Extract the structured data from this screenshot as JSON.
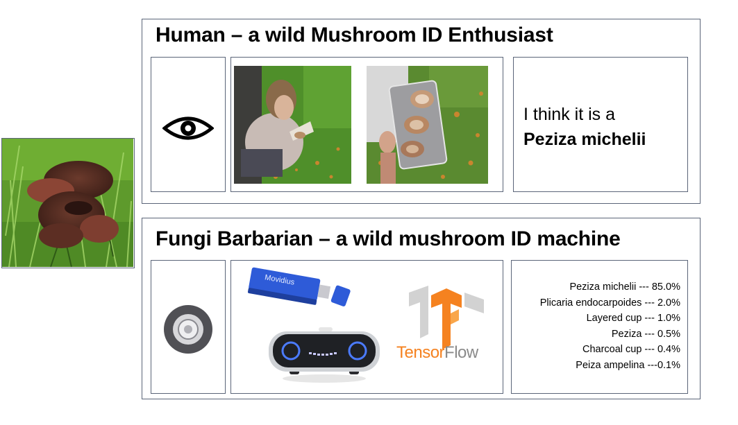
{
  "human": {
    "title": "Human – a wild Mushroom ID Enthusiast",
    "sense_icon": "eye-icon",
    "think_line1": "I think it is a",
    "think_species": "Peziza michelii"
  },
  "machine": {
    "title": "Fungi Barbarian – a wild mushroom ID machine",
    "sense_icon": "camera-lens-icon",
    "usb_label": "Movidius",
    "tf_label_a": "Tensor",
    "tf_label_b": "Flow",
    "predictions": [
      "Peziza michelii --- 85.0%",
      "Plicaria endocarpoides --- 2.0%",
      "Layered cup --- 1.0%",
      "Peziza --- 0.5%",
      "Charcoal cup --- 0.4%",
      "Peiza ampelina ---0.1%"
    ]
  },
  "colors": {
    "frame_border": "#5a6478",
    "tf_orange": "#f58220",
    "tf_gray": "#bfbfbf",
    "movidius_blue": "#2e5bd8",
    "robot_ring": "#4b7bff"
  }
}
